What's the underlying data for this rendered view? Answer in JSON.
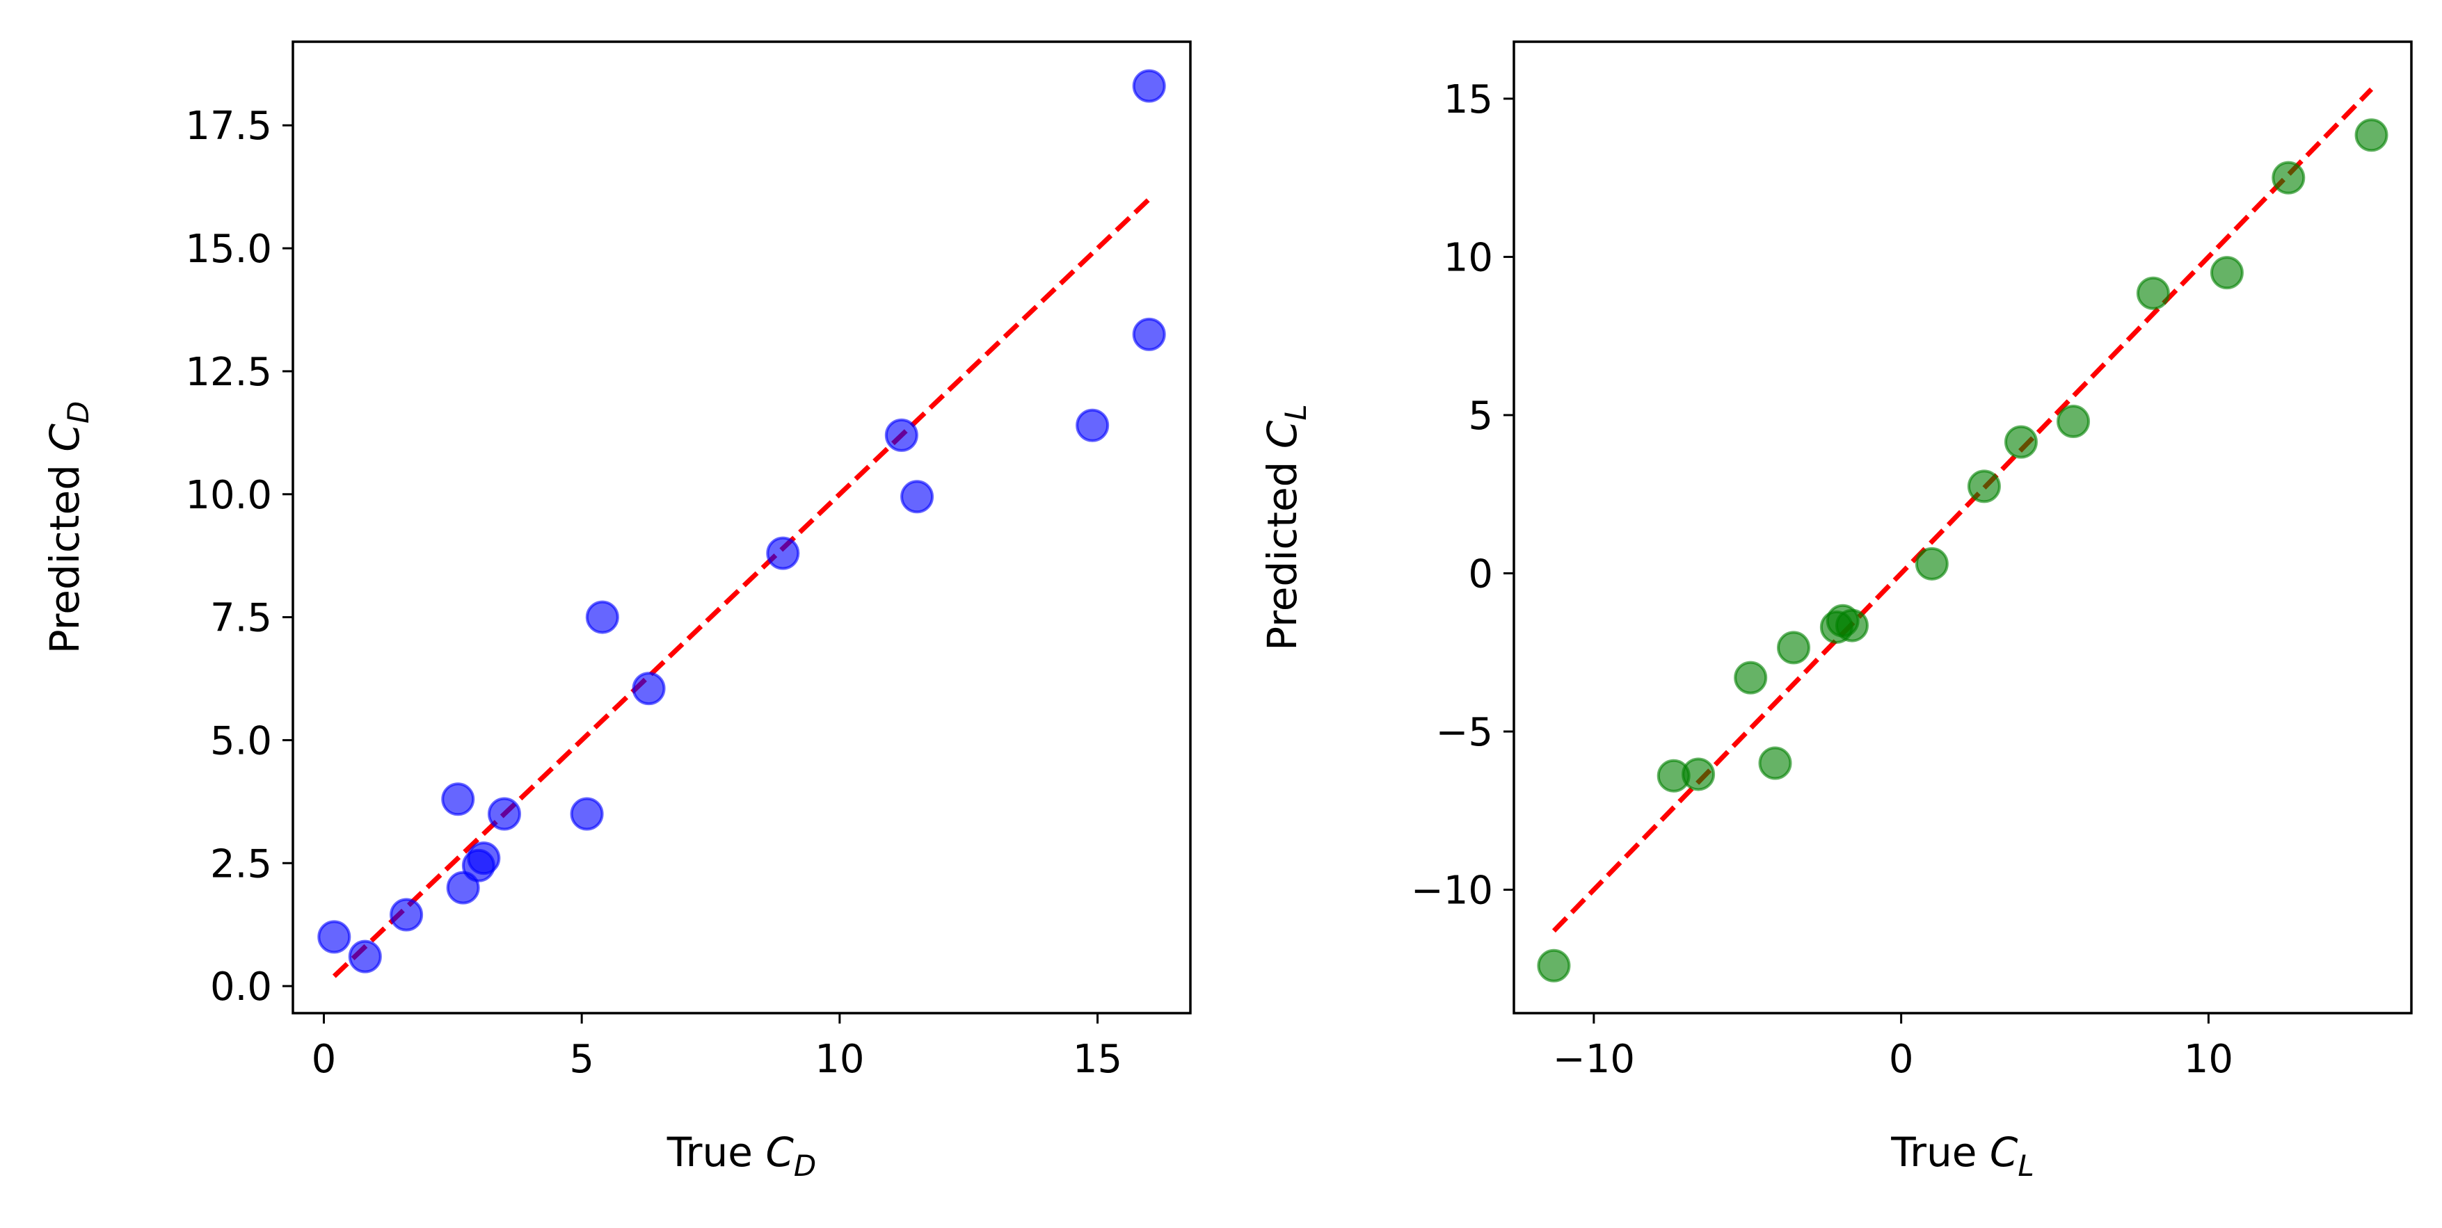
{
  "chart_data": [
    {
      "type": "scatter",
      "xlabel": {
        "prefix": "True ",
        "symbol": "C",
        "subscript": "D"
      },
      "ylabel": {
        "prefix": "Predicted ",
        "symbol": "C",
        "subscript": "D"
      },
      "xlim": [
        -0.6,
        16.8
      ],
      "ylim": [
        -0.55,
        19.2
      ],
      "xticks": [
        0,
        5,
        10,
        15
      ],
      "xtick_labels": [
        "0",
        "5",
        "10",
        "15"
      ],
      "yticks": [
        0,
        2.5,
        5,
        7.5,
        10,
        12.5,
        15,
        17.5
      ],
      "ytick_labels": [
        "0.0",
        "2.5",
        "5.0",
        "7.5",
        "10.0",
        "12.5",
        "15.0",
        "17.5"
      ],
      "grid": false,
      "marker_color": "#0000ff",
      "marker_alpha": 0.6,
      "points": [
        {
          "x": 0.2,
          "y": 1.0
        },
        {
          "x": 0.8,
          "y": 0.6
        },
        {
          "x": 1.6,
          "y": 1.45
        },
        {
          "x": 2.6,
          "y": 3.8
        },
        {
          "x": 2.7,
          "y": 2.0
        },
        {
          "x": 3.0,
          "y": 2.45
        },
        {
          "x": 3.1,
          "y": 2.6
        },
        {
          "x": 3.5,
          "y": 3.5
        },
        {
          "x": 5.1,
          "y": 3.5
        },
        {
          "x": 5.4,
          "y": 7.5
        },
        {
          "x": 6.3,
          "y": 6.05
        },
        {
          "x": 8.9,
          "y": 8.8
        },
        {
          "x": 11.2,
          "y": 11.2
        },
        {
          "x": 11.5,
          "y": 9.95
        },
        {
          "x": 14.9,
          "y": 11.4
        },
        {
          "x": 16.0,
          "y": 18.3
        },
        {
          "x": 16.0,
          "y": 13.25
        }
      ],
      "identity_line": {
        "x": [
          0.2,
          16.0
        ],
        "y": [
          0.2,
          16.0
        ],
        "color": "#ff0000",
        "style": "dashed"
      }
    },
    {
      "type": "scatter",
      "xlabel": {
        "prefix": "True ",
        "symbol": "C",
        "subscript": "L"
      },
      "ylabel": {
        "prefix": "Predicted ",
        "symbol": "C",
        "subscript": "L"
      },
      "xlim": [
        -12.6,
        16.6
      ],
      "ylim": [
        -13.9,
        16.8
      ],
      "xticks": [
        -10,
        0,
        10
      ],
      "xtick_labels": [
        "−10",
        "0",
        "10"
      ],
      "yticks": [
        -10,
        -5,
        0,
        5,
        10,
        15
      ],
      "ytick_labels": [
        "−10",
        "−5",
        "0",
        "5",
        "10",
        "15"
      ],
      "grid": false,
      "marker_color": "#008000",
      "marker_alpha": 0.6,
      "points": [
        {
          "x": -11.3,
          "y": -12.4
        },
        {
          "x": -7.4,
          "y": -6.4
        },
        {
          "x": -6.6,
          "y": -6.35
        },
        {
          "x": -4.9,
          "y": -3.3
        },
        {
          "x": -4.1,
          "y": -6.0
        },
        {
          "x": -3.5,
          "y": -2.35
        },
        {
          "x": -2.1,
          "y": -1.7
        },
        {
          "x": -1.9,
          "y": -1.5
        },
        {
          "x": -1.6,
          "y": -1.65
        },
        {
          "x": 1.0,
          "y": 0.3
        },
        {
          "x": 2.7,
          "y": 2.75
        },
        {
          "x": 3.9,
          "y": 4.15
        },
        {
          "x": 5.6,
          "y": 4.8
        },
        {
          "x": 8.2,
          "y": 8.85
        },
        {
          "x": 10.6,
          "y": 9.5
        },
        {
          "x": 12.6,
          "y": 12.5
        },
        {
          "x": 15.3,
          "y": 13.85
        }
      ],
      "identity_line": {
        "x": [
          -11.3,
          15.3
        ],
        "y": [
          -11.3,
          15.3
        ],
        "color": "#ff0000",
        "style": "dashed"
      }
    }
  ]
}
